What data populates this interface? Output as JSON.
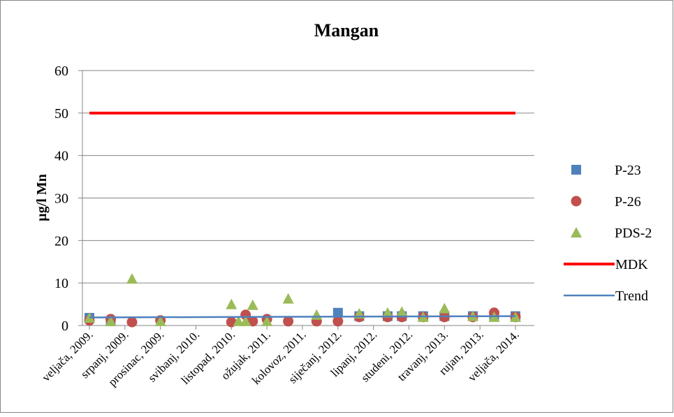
{
  "chart_data": {
    "type": "scatter",
    "title": "Mangan",
    "ylabel": "µg/l Mn",
    "xlim": [
      "2009-02",
      "2014-02"
    ],
    "xticks": [
      {
        "value": "2009-02",
        "label": "veljača, 2009."
      },
      {
        "value": "2009-07",
        "label": "srpanj, 2009."
      },
      {
        "value": "2009-12",
        "label": "prosinac, 2009."
      },
      {
        "value": "2010-05",
        "label": "svibanj, 2010."
      },
      {
        "value": "2010-10",
        "label": "listopad, 2010."
      },
      {
        "value": "2011-03",
        "label": "ožujak, 2011."
      },
      {
        "value": "2011-08",
        "label": "kolovoz, 2011."
      },
      {
        "value": "2012-01",
        "label": "siječanj, 2012."
      },
      {
        "value": "2012-06",
        "label": "lipanj, 2012."
      },
      {
        "value": "2012-11",
        "label": "studeni, 2012."
      },
      {
        "value": "2013-04",
        "label": "travanj, 2013."
      },
      {
        "value": "2013-09",
        "label": "rujan, 2013."
      },
      {
        "value": "2014-02",
        "label": "veljača, 2014."
      }
    ],
    "ylim": [
      0,
      60
    ],
    "yticks": [
      0,
      10,
      20,
      30,
      40,
      50,
      60
    ],
    "grid": true,
    "legend": "right",
    "series": [
      {
        "name": "P-23",
        "color": "#4f81bd",
        "marker": "square",
        "x": [
          "2009-02",
          "2009-05",
          "2012-01",
          "2012-04",
          "2012-08",
          "2012-10",
          "2013-01",
          "2013-04",
          "2013-08",
          "2013-11",
          "2014-02"
        ],
        "values": [
          1.8,
          1,
          3,
          2.2,
          2.2,
          2.2,
          2.2,
          2.2,
          2.2,
          2.2,
          2.2
        ]
      },
      {
        "name": "P-26",
        "color": "#c0504d",
        "marker": "circle",
        "x": [
          "2009-02",
          "2009-05",
          "2009-08",
          "2009-12",
          "2010-10",
          "2010-12",
          "2011-01",
          "2011-03",
          "2011-06",
          "2011-10",
          "2012-01",
          "2012-04",
          "2012-08",
          "2012-10",
          "2013-01",
          "2013-04",
          "2013-08",
          "2013-11",
          "2014-02"
        ],
        "values": [
          1.2,
          1.5,
          0.8,
          1.2,
          0.8,
          2.5,
          1,
          1.5,
          1,
          1,
          1,
          2,
          2,
          2,
          2,
          2,
          2,
          3,
          2
        ]
      },
      {
        "name": "PDS-2",
        "color": "#9bbb59",
        "marker": "triangle",
        "x": [
          "2009-02",
          "2009-05",
          "2009-08",
          "2009-12",
          "2010-10",
          "2010-11",
          "2010-12",
          "2011-01",
          "2011-03",
          "2011-06",
          "2011-10",
          "2012-04",
          "2012-08",
          "2012-10",
          "2013-01",
          "2013-04",
          "2013-08",
          "2013-11",
          "2014-02"
        ],
        "values": [
          1.8,
          1,
          11,
          1,
          5,
          1,
          1,
          4.8,
          1,
          6.3,
          2.5,
          2.8,
          3,
          3.2,
          2,
          4,
          2.2,
          2,
          2
        ]
      },
      {
        "name": "MDK",
        "color": "#ff0000",
        "marker": "line",
        "width": 4,
        "x": [
          "2009-02",
          "2014-02"
        ],
        "values": [
          50,
          50
        ]
      },
      {
        "name": "Trend",
        "color": "#4f81bd",
        "marker": "line",
        "width": 2.5,
        "x": [
          "2009-02",
          "2014-02"
        ],
        "values": [
          1.9,
          2.2
        ]
      }
    ]
  }
}
